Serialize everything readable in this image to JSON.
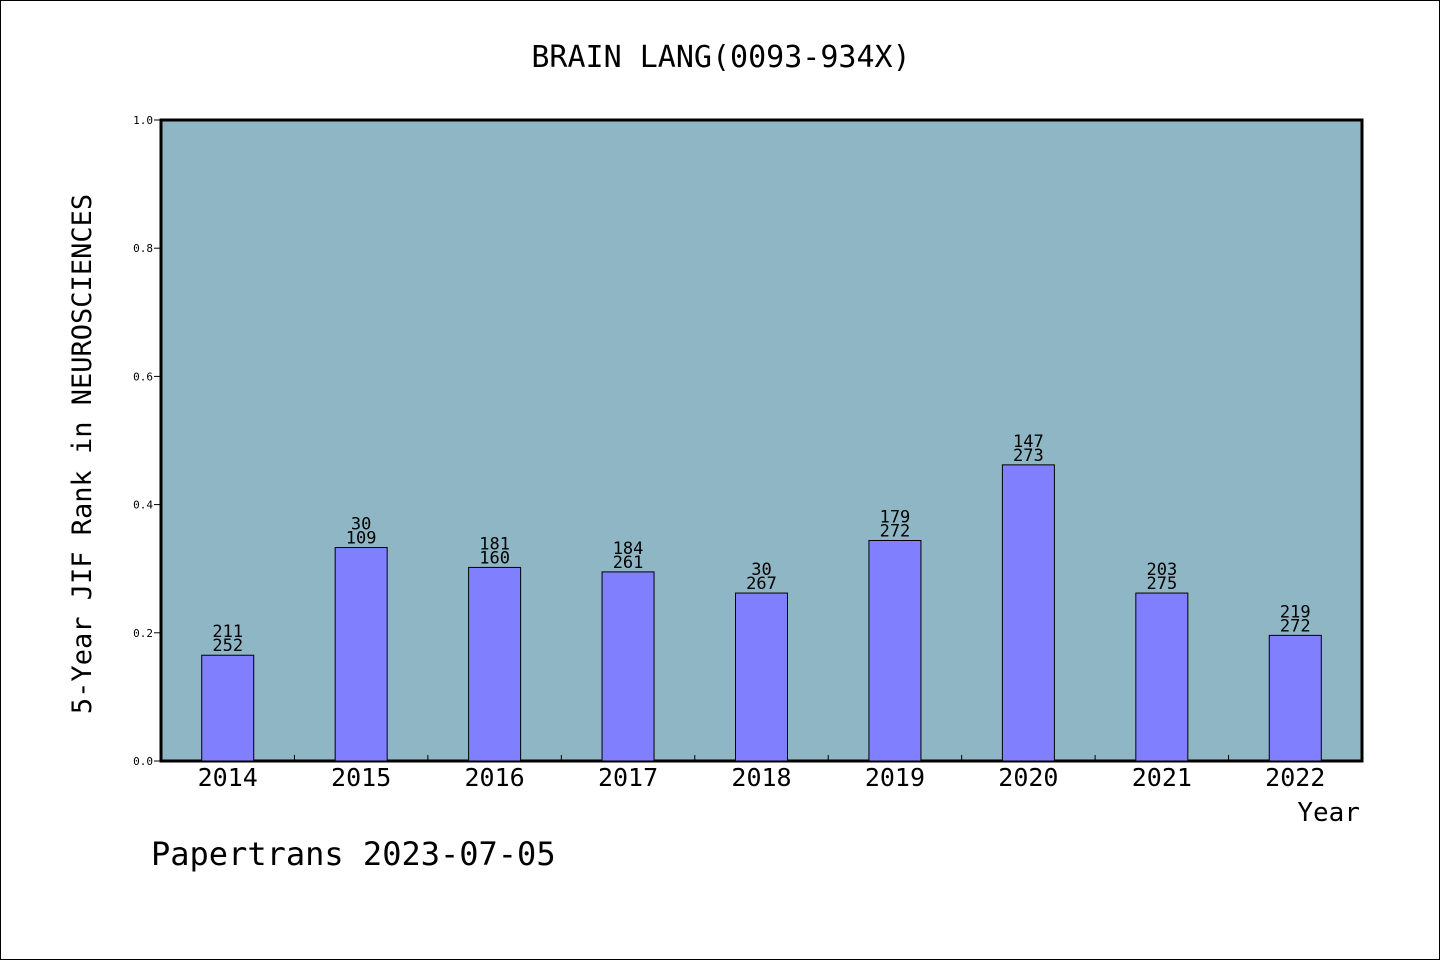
{
  "chart_data": {
    "type": "bar",
    "title": "BRAIN LANG(0093-934X)",
    "xlabel": "Year",
    "ylabel": "5-Year JIF Rank in NEUROSCIENCES",
    "footer": "Papertrans 2023-07-05",
    "ylim": [
      0,
      1.0
    ],
    "yticks": [
      "0.0",
      "0.2",
      "0.4",
      "0.6",
      "0.8",
      "1.0"
    ],
    "grid": false,
    "categories": [
      "2014",
      "2015",
      "2016",
      "2017",
      "2018",
      "2019",
      "2020",
      "2021",
      "2022"
    ],
    "values": [
      0.165,
      0.333,
      0.302,
      0.295,
      0.262,
      0.344,
      0.462,
      0.262,
      0.196
    ],
    "labels_top": [
      "211",
      "30",
      "181",
      "184",
      "30",
      "179",
      "147",
      "203",
      "219"
    ],
    "labels_bottom": [
      "252",
      "109",
      "160",
      "261",
      "267",
      "272",
      "273",
      "275",
      "272"
    ],
    "colors": {
      "plot_background": "#8fb6c4",
      "bar_fill": "#8080ff",
      "bar_stroke": "#000000"
    }
  }
}
